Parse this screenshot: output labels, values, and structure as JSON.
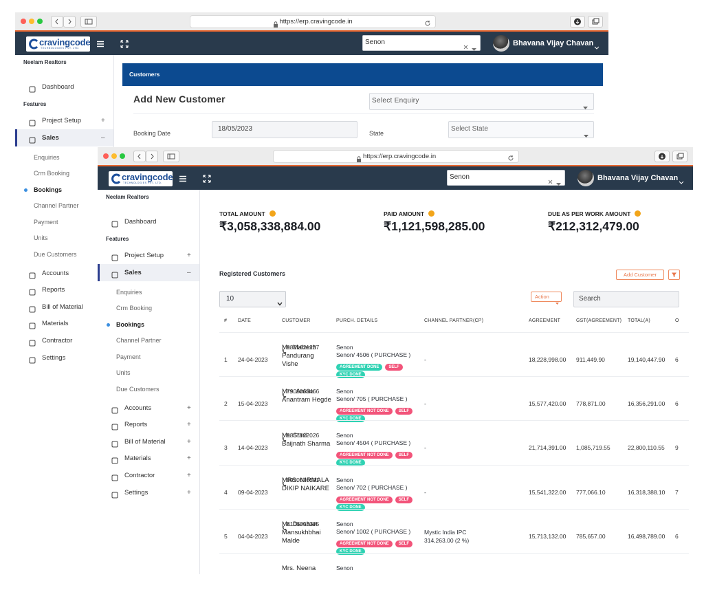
{
  "back_window": {
    "url": "https://erp.cravingcode.in",
    "brand": "cravingcode",
    "brand_tagline": "TECHNOLOGIES PVT. LTD.",
    "search": "Senon",
    "user": "Bhavana Vijay Chavan",
    "sidebar": {
      "company": "Neelam Realtors",
      "top": "Dashboard",
      "section": "Features",
      "groups": [
        {
          "label": "Project Setup",
          "toggle": "+"
        },
        {
          "label": "Sales",
          "toggle": "–",
          "active": true,
          "current": 2,
          "children": [
            "Enquiries",
            "Crm Booking",
            "Bookings",
            "Channel Partner",
            "Payment",
            "Units",
            "Due Customers"
          ]
        },
        {
          "label": "Accounts"
        },
        {
          "label": "Reports"
        },
        {
          "label": "Bill of Material"
        },
        {
          "label": "Materials"
        },
        {
          "label": "Contractor"
        },
        {
          "label": "Settings"
        }
      ]
    },
    "page_header": "Customers",
    "form_title": "Add New Customer",
    "enquiry_placeholder": "Select Enquiry",
    "booking_date_label": "Booking Date",
    "booking_date": "18/05/2023",
    "state_label": "State",
    "state_placeholder": "Select State"
  },
  "front_window": {
    "url": "https://erp.cravingcode.in",
    "brand": "cravingcode",
    "brand_tagline": "TECHNOLOGIES PVT. LTD.",
    "search": "Senon",
    "user": "Bhavana Vijay Chavan",
    "sidebar": {
      "company": "Neelam Realtors",
      "top": "Dashboard",
      "section": "Features",
      "groups": [
        {
          "label": "Project Setup",
          "toggle": "+"
        },
        {
          "label": "Sales",
          "toggle": "–",
          "active": true,
          "current": 2,
          "children": [
            "Enquiries",
            "Crm Booking",
            "Bookings",
            "Channel Partner",
            "Payment",
            "Units",
            "Due Customers"
          ]
        },
        {
          "label": "Accounts",
          "toggle": "+"
        },
        {
          "label": "Reports",
          "toggle": "+"
        },
        {
          "label": "Bill of Material",
          "toggle": "+"
        },
        {
          "label": "Materials",
          "toggle": "+"
        },
        {
          "label": "Contractor",
          "toggle": "+"
        },
        {
          "label": "Settings",
          "toggle": "+"
        }
      ]
    },
    "stats": [
      {
        "label": "TOTAL AMOUNT",
        "value": "₹3,058,338,884.00"
      },
      {
        "label": "PAID AMOUNT",
        "value": "₹1,121,598,285.00"
      },
      {
        "label": "DUE AS PER WORK AMOUNT",
        "value": "₹212,312,479.00"
      }
    ],
    "table": {
      "title": "Registered Customers",
      "add_button": "Add Customer",
      "page_size": "10",
      "action_button": "Action",
      "search_placeholder": "Search",
      "headers": [
        "#",
        "DATE",
        "CUSTOMER",
        "PURCH. DETAILS",
        "CHANNEL PARTNER(CP)",
        "AGREEMENT",
        "GST(AGREEMENT)",
        "TOTAL(A)",
        "O"
      ],
      "rows": [
        {
          "no": 1,
          "date": "24-04-2023",
          "customer": "Mr. Mahesh Pandurang Vishe",
          "phone": "9821621237",
          "project": "Senon",
          "unit": "Senon/ 4506 ( PURCHASE )",
          "badges": [
            [
              {
                "text": "AGREEMENT DONE",
                "color": "#2fd2b3"
              },
              {
                "text": "SELF",
                "color": "#f2547a"
              }
            ],
            [
              {
                "text": "KYC DONE",
                "color": "#2fd2b3"
              }
            ]
          ],
          "channel_partner": [
            "-"
          ],
          "agreement": "18,228,998.00",
          "gst": "911,449.90",
          "total": "19,140,447.90",
          "extra": "6"
        },
        {
          "no": 2,
          "date": "15-04-2023",
          "customer": "Mrs. Ankita Anantram Hegde",
          "phone": "7900065466",
          "project": "Senon",
          "unit": "Senon/ 705 ( PURCHASE )",
          "badges": [
            [
              {
                "text": "AGREEMENT NOT DONE",
                "color": "#f2547a"
              },
              {
                "text": "SELF",
                "color": "#f2547a"
              }
            ],
            [
              {
                "text": "KYC DONE",
                "color": "#2fd2b3"
              }
            ]
          ],
          "channel_partner": [
            "-"
          ],
          "agreement": "15,577,420.00",
          "gst": "778,871.00",
          "total": "16,356,291.00",
          "extra": "6"
        },
        {
          "no": 3,
          "date": "14-04-2023",
          "customer": "Mr. Sunil Baijnath Sharma",
          "phone": "9867522026",
          "project": "Senon",
          "unit": "Senon/ 4504 ( PURCHASE )",
          "badges": [
            [
              {
                "text": "AGREEMENT NOT DONE",
                "color": "#f2547a"
              },
              {
                "text": "SELF",
                "color": "#f2547a"
              }
            ],
            [
              {
                "text": "KYC DONE",
                "color": "#2fd2b3"
              }
            ]
          ],
          "channel_partner": [
            "-"
          ],
          "agreement": "21,714,391.00",
          "gst": "1,085,719.55",
          "total": "22,800,110.55",
          "extra": "9"
        },
        {
          "no": 4,
          "date": "09-04-2023",
          "customer": "MRS. NIRMALA DIKIP NAIKARE",
          "phone": "9920570591",
          "project": "Senon",
          "unit": "Senon/ 702 ( PURCHASE )",
          "badges": [
            [
              {
                "text": "AGREEMENT NOT DONE",
                "color": "#f2547a"
              },
              {
                "text": "SELF",
                "color": "#f2547a"
              }
            ],
            [
              {
                "text": "KYC DONE",
                "color": "#2fd2b3"
              }
            ]
          ],
          "channel_partner": [
            "-"
          ],
          "agreement": "15,541,322.00",
          "gst": "777,066.10",
          "total": "16,318,388.10",
          "extra": "7"
        },
        {
          "no": 5,
          "date": "04-04-2023",
          "customer": "Mr. Darshan Mansukhbhai Malde",
          "phone": "8108003395",
          "project": "Senon",
          "unit": "Senon/ 1002 ( PURCHASE )",
          "badges": [
            [
              {
                "text": "AGREEMENT NOT DONE",
                "color": "#f2547a"
              },
              {
                "text": "SELF",
                "color": "#f2547a"
              }
            ],
            [
              {
                "text": "KYC DONE",
                "color": "#2fd2b3"
              }
            ]
          ],
          "channel_partner": [
            "Mystic India IPC",
            "314,263.00 (2 %)"
          ],
          "agreement": "15,713,132.00",
          "gst": "785,657.00",
          "total": "16,498,789.00",
          "extra": "6"
        },
        {
          "customer": "Mrs. Neena",
          "project": "Senon"
        }
      ]
    }
  }
}
